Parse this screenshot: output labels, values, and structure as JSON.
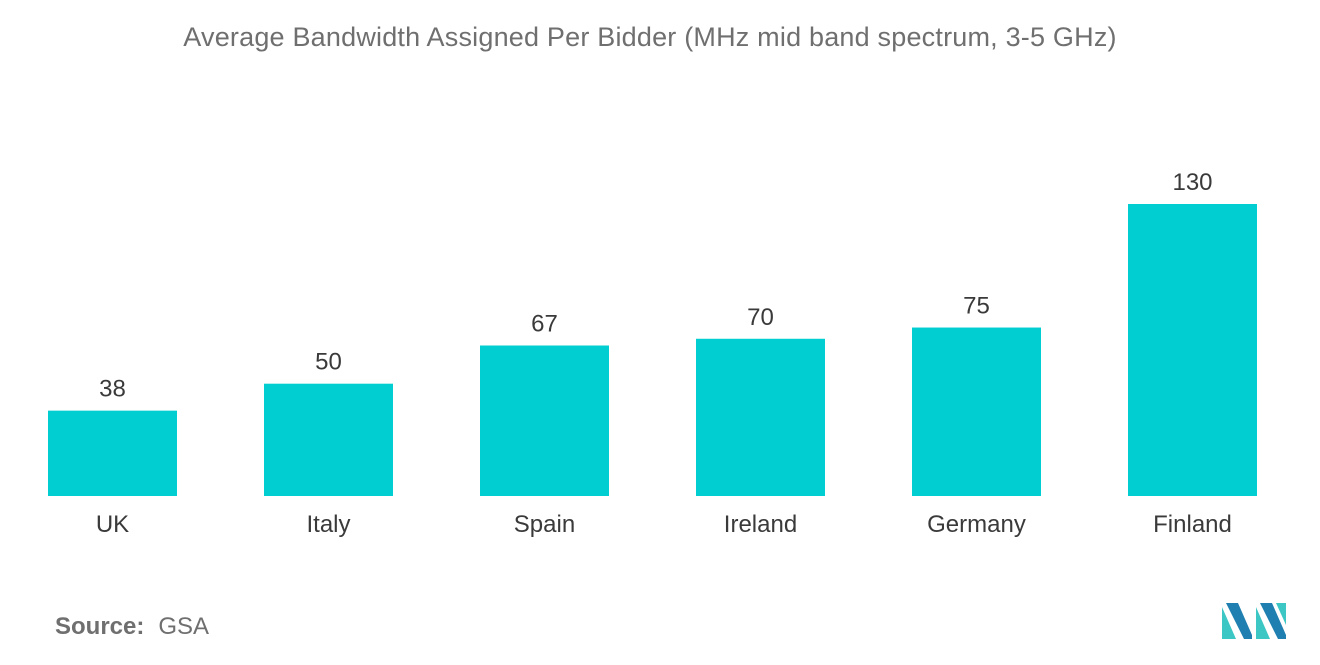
{
  "chart_data": {
    "type": "bar",
    "title": "Average Bandwidth Assigned Per Bidder (MHz mid band spectrum, 3-5 GHz)",
    "categories": [
      "UK",
      "Italy",
      "Spain",
      "Ireland",
      "Germany",
      "Finland"
    ],
    "values": [
      38,
      50,
      67,
      70,
      75,
      130
    ],
    "data_labels": [
      "38",
      "50",
      "67",
      "70",
      "75",
      "130"
    ],
    "xlabel": "",
    "ylabel": "",
    "ylim": [
      0,
      130
    ],
    "grid": false,
    "legend": "none",
    "bar_color": "#00ced1"
  },
  "source": {
    "label": "Source:",
    "value": "GSA"
  },
  "logo": {
    "icon": "mordor-intelligence-logo-icon",
    "colors": [
      "#1e7fb0",
      "#3cc7c5"
    ]
  }
}
